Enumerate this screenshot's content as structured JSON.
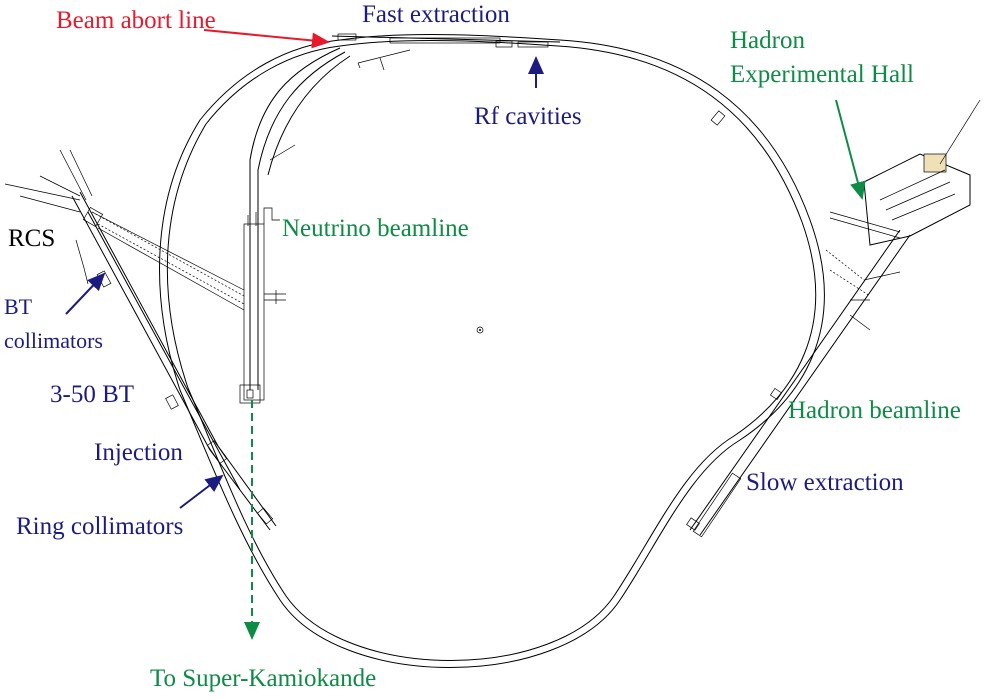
{
  "labels": {
    "beam_abort_line": "Beam abort line",
    "fast_extraction": "Fast extraction",
    "rf_cavities": "Rf cavities",
    "hadron_hall_line1": "Hadron",
    "hadron_hall_line2": "Experimental Hall",
    "neutrino_beamline": "Neutrino beamline",
    "rcs": "RCS",
    "bt_collimators_line1": "BT",
    "bt_collimators_line2": "collimators",
    "bt_3_50": "3-50 BT",
    "injection": "Injection",
    "ring_collimators": "Ring collimators",
    "hadron_beamline": "Hadron beamline",
    "slow_extraction": "Slow extraction",
    "to_super_kamiokande": "To Super-Kamiokande"
  },
  "colors": {
    "red": "#e8192c",
    "navy": "#1c1c80",
    "green": "#0e8b45",
    "black": "#000000"
  }
}
